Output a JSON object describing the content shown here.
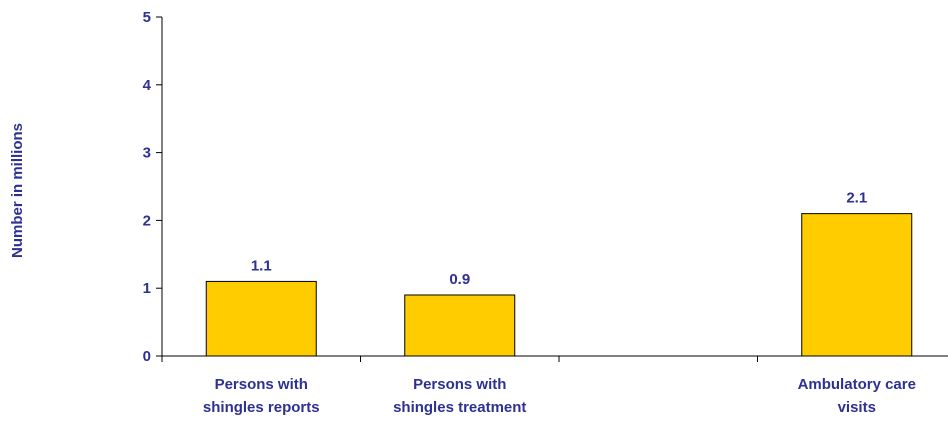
{
  "chart_data": {
    "type": "bar",
    "ylabel": "Number in millions",
    "xlabel": "",
    "ylim": [
      0,
      5
    ],
    "yticks": [
      0,
      1,
      2,
      3,
      4,
      5
    ],
    "categories": [
      [
        "Persons with",
        "shingles reports"
      ],
      [
        "Persons with",
        "shingles treatment"
      ],
      [
        "",
        ""
      ],
      [
        "Ambulatory care",
        "visits"
      ]
    ],
    "values": [
      1.1,
      0.9,
      null,
      2.1
    ],
    "data_labels": [
      "1.1",
      "0.9",
      "",
      "2.1"
    ],
    "grid": false,
    "legend": "none",
    "colors": {
      "bar_fill": "#ffcc00",
      "bar_stroke": "#000000",
      "text": "#2e3192",
      "axis": "#000000"
    }
  }
}
